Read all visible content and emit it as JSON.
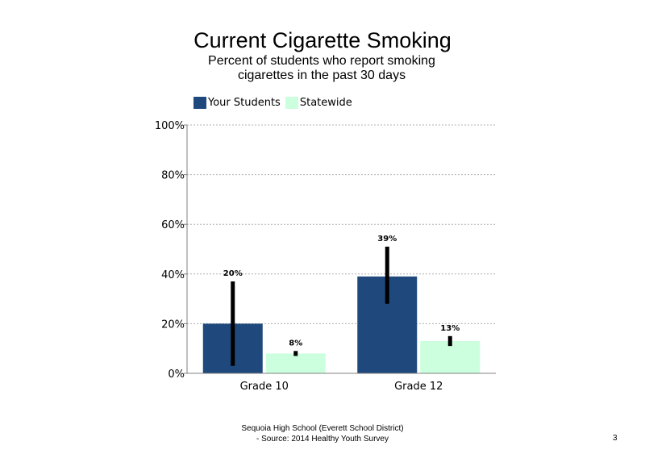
{
  "slide": {
    "title": "Current Cigarette Smoking",
    "subtitle": "Percent of students who report smoking cigarettes in the past 30 days",
    "footer_line1": "Sequoia High School (Everett School District)",
    "footer_line2": "- Source: 2014 Healthy Youth Survey",
    "page_number": "3"
  },
  "chart_data": {
    "type": "bar",
    "categories": [
      "Grade 10",
      "Grade 12"
    ],
    "series": [
      {
        "name": "Your Students",
        "color": "#1f497d",
        "values": [
          20,
          39
        ],
        "labels": [
          "20%",
          "39%"
        ],
        "error_low": [
          3,
          28
        ],
        "error_high": [
          37,
          51
        ]
      },
      {
        "name": "Statewide",
        "color": "#ccffdd",
        "values": [
          8,
          13
        ],
        "labels": [
          "8%",
          "13%"
        ],
        "error_low": [
          7,
          11
        ],
        "error_high": [
          9,
          15
        ]
      }
    ],
    "ylim": [
      0,
      100
    ],
    "yticks": [
      0,
      20,
      40,
      60,
      80,
      100
    ],
    "ytick_labels": [
      "0%",
      "20%",
      "40%",
      "60%",
      "80%",
      "100%"
    ],
    "grid": true,
    "legend_position": "top-left"
  }
}
